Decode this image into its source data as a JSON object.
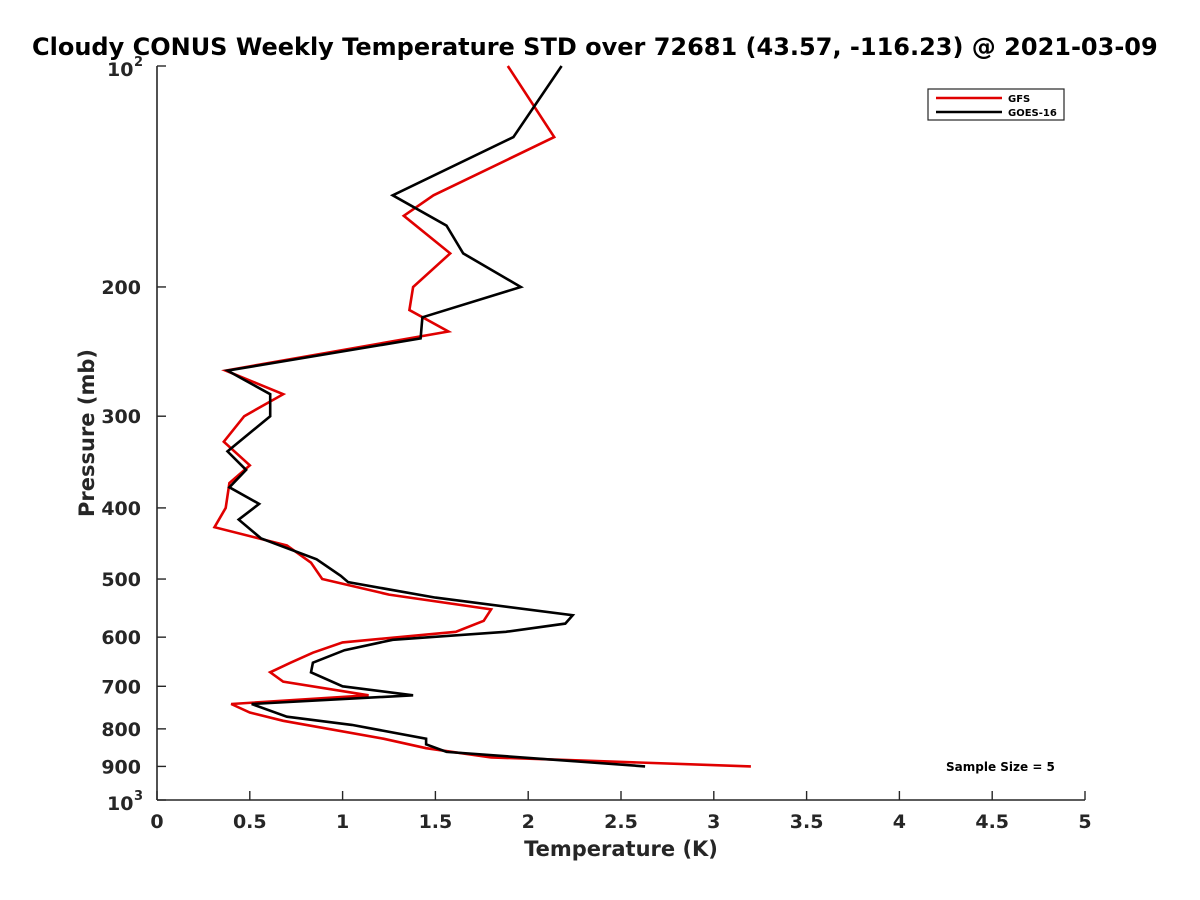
{
  "chart_data": {
    "type": "line",
    "title": "Cloudy CONUS Weekly Temperature STD over 72681 (43.57, -116.23) @ 2021-03-09",
    "xlabel": "Temperature (K)",
    "ylabel": "Pressure (mb)",
    "xlim": [
      0,
      5
    ],
    "ylim": [
      100,
      1000
    ],
    "y_scale": "log",
    "y_direction": "reversed",
    "grid": false,
    "legend_position": "top-right",
    "x_ticks": [
      0,
      0.5,
      1,
      1.5,
      2,
      2.5,
      3,
      3.5,
      4,
      4.5,
      5
    ],
    "x_tick_labels": [
      "0",
      "0.5",
      "1",
      "1.5",
      "2",
      "2.5",
      "3",
      "3.5",
      "4",
      "4.5",
      "5"
    ],
    "y_ticks": [
      {
        "value": 100,
        "base": "10",
        "exp": "2"
      },
      {
        "value": 200,
        "label": "200"
      },
      {
        "value": 300,
        "label": "300"
      },
      {
        "value": 400,
        "label": "400"
      },
      {
        "value": 500,
        "label": "500"
      },
      {
        "value": 600,
        "label": "600"
      },
      {
        "value": 700,
        "label": "700"
      },
      {
        "value": 800,
        "label": "800"
      },
      {
        "value": 900,
        "label": "900"
      },
      {
        "value": 1000,
        "base": "10",
        "exp": "3"
      }
    ],
    "series": [
      {
        "name": "GFS",
        "color": "#e00000",
        "points": [
          [
            1.89,
            100
          ],
          [
            2.14,
            125
          ],
          [
            1.49,
            150
          ],
          [
            1.33,
            160
          ],
          [
            1.58,
            180
          ],
          [
            1.38,
            200
          ],
          [
            1.36,
            215
          ],
          [
            1.57,
            230
          ],
          [
            0.37,
            260
          ],
          [
            0.68,
            280
          ],
          [
            0.47,
            300
          ],
          [
            0.36,
            325
          ],
          [
            0.5,
            350
          ],
          [
            0.39,
            370
          ],
          [
            0.37,
            400
          ],
          [
            0.31,
            425
          ],
          [
            0.7,
            450
          ],
          [
            0.83,
            475
          ],
          [
            0.89,
            500
          ],
          [
            1.25,
            525
          ],
          [
            1.8,
            550
          ],
          [
            1.76,
            570
          ],
          [
            1.61,
            590
          ],
          [
            1.0,
            610
          ],
          [
            0.84,
            630
          ],
          [
            0.72,
            650
          ],
          [
            0.61,
            670
          ],
          [
            0.68,
            690
          ],
          [
            1.14,
            720
          ],
          [
            0.4,
            740
          ],
          [
            0.5,
            760
          ],
          [
            0.68,
            780
          ],
          [
            1.22,
            825
          ],
          [
            1.45,
            850
          ],
          [
            1.8,
            875
          ],
          [
            3.2,
            900
          ]
        ]
      },
      {
        "name": "GOES-16",
        "color": "#000000",
        "points": [
          [
            2.18,
            100
          ],
          [
            1.92,
            125
          ],
          [
            1.27,
            150
          ],
          [
            1.56,
            165
          ],
          [
            1.65,
            180
          ],
          [
            1.96,
            200
          ],
          [
            1.43,
            220
          ],
          [
            1.42,
            235
          ],
          [
            0.38,
            260
          ],
          [
            0.61,
            280
          ],
          [
            0.61,
            300
          ],
          [
            0.38,
            335
          ],
          [
            0.48,
            355
          ],
          [
            0.39,
            375
          ],
          [
            0.55,
            395
          ],
          [
            0.44,
            415
          ],
          [
            0.56,
            440
          ],
          [
            0.86,
            470
          ],
          [
            0.99,
            495
          ],
          [
            1.03,
            505
          ],
          [
            1.5,
            530
          ],
          [
            2.24,
            560
          ],
          [
            2.2,
            575
          ],
          [
            1.88,
            590
          ],
          [
            1.27,
            605
          ],
          [
            1.01,
            625
          ],
          [
            0.84,
            650
          ],
          [
            0.83,
            670
          ],
          [
            1.0,
            700
          ],
          [
            1.38,
            720
          ],
          [
            0.51,
            740
          ],
          [
            0.7,
            770
          ],
          [
            1.05,
            790
          ],
          [
            1.45,
            825
          ],
          [
            1.45,
            840
          ],
          [
            1.56,
            860
          ],
          [
            2.63,
            900
          ]
        ]
      }
    ],
    "annotation": "Sample Size = 5"
  }
}
